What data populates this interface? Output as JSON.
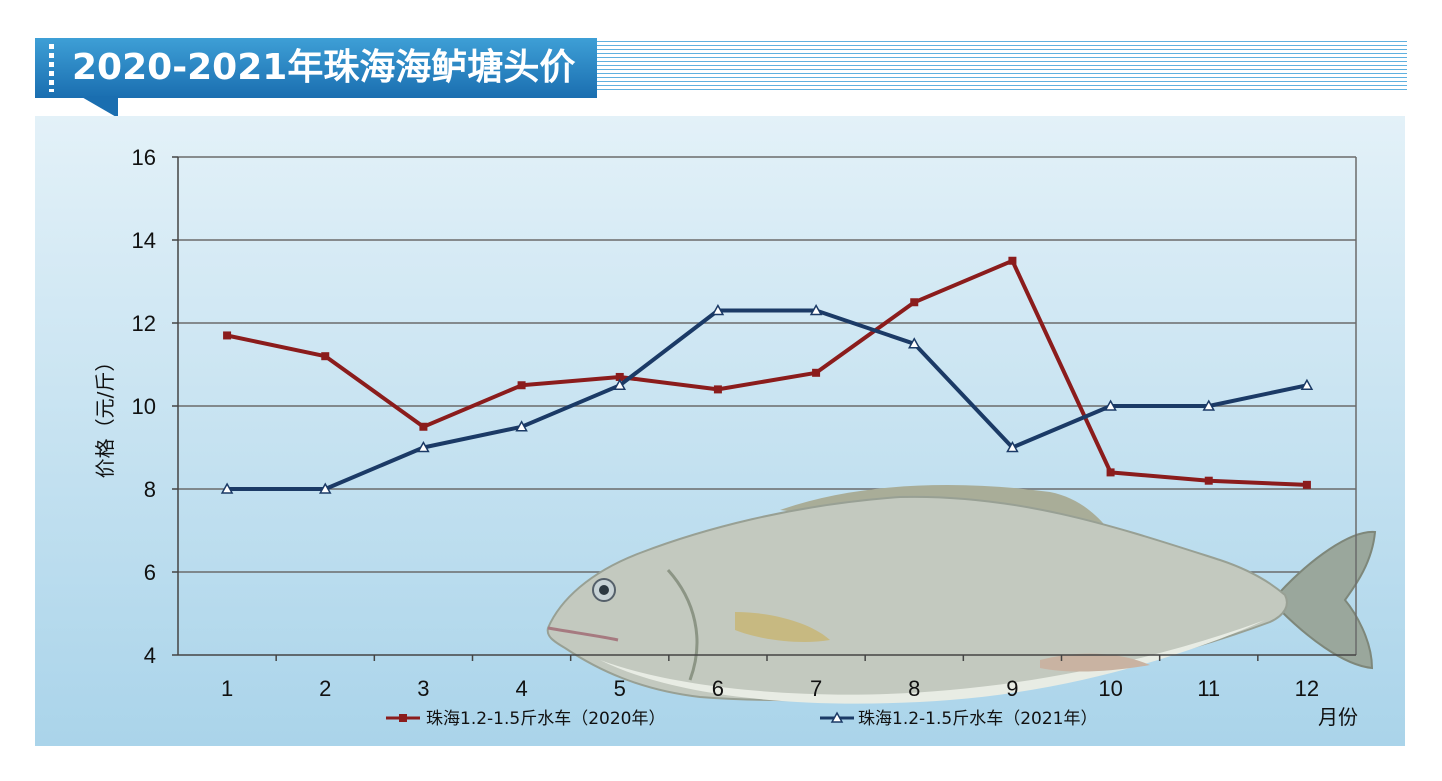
{
  "header": {
    "title": "2020-2021年珠海海鲈塘头价"
  },
  "chart_data": {
    "type": "line",
    "title": "2020-2021年珠海海鲈塘头价",
    "xlabel": "月份",
    "ylabel": "价格（元/斤）",
    "categories": [
      "1",
      "2",
      "3",
      "4",
      "5",
      "6",
      "7",
      "8",
      "9",
      "10",
      "11",
      "12"
    ],
    "ylim": [
      4,
      16
    ],
    "yticks": [
      4,
      6,
      8,
      10,
      12,
      14,
      16
    ],
    "grid": true,
    "legend_position": "bottom",
    "series": [
      {
        "name": "珠海1.2-1.5斤水车（2020年）",
        "color": "#8b1c1c",
        "marker": "square",
        "values": [
          11.7,
          11.2,
          9.5,
          10.5,
          10.7,
          10.4,
          10.8,
          12.5,
          13.5,
          8.4,
          8.2,
          8.1
        ]
      },
      {
        "name": "珠海1.2-1.5斤水车（2021年）",
        "color": "#1b3a66",
        "marker": "triangle",
        "values": [
          8.0,
          8.0,
          9.0,
          9.5,
          10.5,
          12.3,
          12.3,
          11.5,
          9.0,
          10.0,
          10.0,
          10.5
        ]
      }
    ]
  }
}
